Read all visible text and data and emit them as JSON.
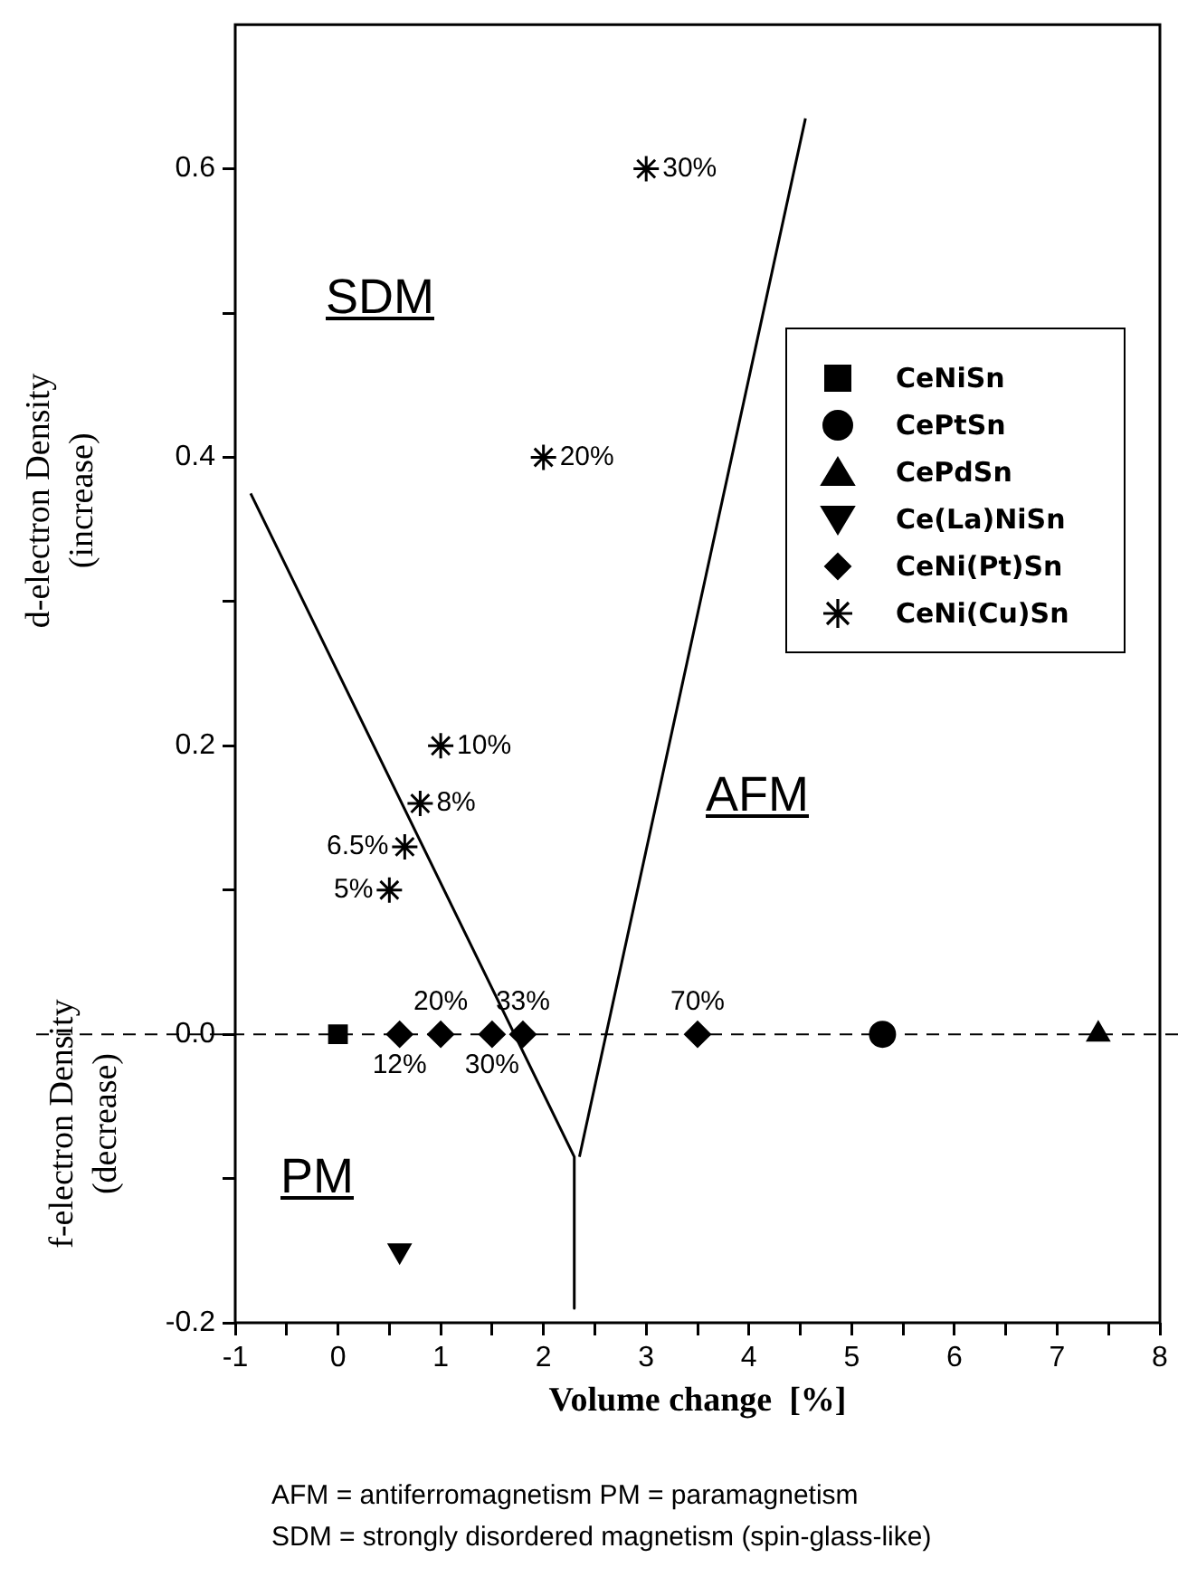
{
  "chart_data": {
    "type": "scatter",
    "xlabel": "Volume change  [%]",
    "ylabel": "d-electron Density\n(increase)",
    "xlim": [
      -1,
      8
    ],
    "ylim": [
      -0.2,
      0.7
    ],
    "xticks": [
      -1,
      {
        "value": -0.5,
        "label": null
      },
      0,
      {
        "value": 0.5,
        "label": null
      },
      1,
      {
        "value": 1.5,
        "label": null
      },
      2,
      {
        "value": 2.5,
        "label": null
      },
      3,
      {
        "value": 3.5,
        "label": null
      },
      4,
      {
        "value": 4.5,
        "label": null
      },
      5,
      {
        "value": 5.5,
        "label": null
      },
      6,
      {
        "value": 6.5,
        "label": null
      },
      7,
      {
        "value": 7.5,
        "label": null
      },
      8
    ],
    "yticks": [
      -0.2,
      {
        "value": -0.1,
        "label": null
      },
      {
        "value": 0,
        "label": "0.0"
      },
      {
        "value": 0.1,
        "label": null
      },
      0.2,
      {
        "value": 0.3,
        "label": null
      },
      0.4,
      {
        "value": 0.5,
        "label": null
      },
      0.6
    ],
    "legend": "right",
    "grid": false,
    "series": [
      {
        "name": "CeNiSn",
        "color": "#000000",
        "marker": "square",
        "x": [
          0
        ],
        "values": [
          0
        ]
      },
      {
        "name": "CePtSn",
        "color": "#000000",
        "marker": "circle",
        "x": [
          5.3
        ],
        "values": [
          0
        ]
      },
      {
        "name": "CePdSn",
        "color": "#000000",
        "marker": "triangle",
        "x": [
          7.4
        ],
        "values": [
          0
        ]
      },
      {
        "name": "Ce(La)NiSn",
        "color": "#000000",
        "marker": "triangle_down",
        "x": [
          0.6
        ],
        "values": [
          -0.15
        ]
      },
      {
        "name": "CeNi(Pt)Sn",
        "color": "#000000",
        "marker": "diamond",
        "x": [
          0.6,
          1.0,
          1.5,
          1.8,
          3.5
        ],
        "values": [
          0,
          0,
          0,
          0,
          0
        ]
      },
      {
        "name": "CeNi(Cu)Sn",
        "color": "#000000",
        "marker": "cross",
        "x": [
          0.5,
          0.65,
          0.8,
          1.0,
          2.0,
          3.0
        ],
        "values": [
          0.1,
          0.13,
          0.16,
          0.2,
          0.4,
          0.6
        ]
      },
      {
        "type": "line",
        "color": "#000000",
        "marker": "none",
        "x": [
          -0.85,
          2.3,
          2.3
        ],
        "values": [
          0.375,
          -0.085,
          -0.19
        ]
      },
      {
        "type": "line",
        "color": "#000000",
        "marker": "none",
        "x": [
          2.35,
          4.55
        ],
        "values": [
          -0.085,
          0.635
        ]
      }
    ],
    "ref_lines": [
      {
        "axis": "y",
        "value": 0,
        "line_style": "dashed"
      }
    ],
    "annotations": [
      "SDM",
      "AFM",
      "PM",
      "f-electron Density\n(decrease)",
      {
        "text": "12%",
        "x": 0.6,
        "y": 0
      },
      {
        "text": "20%",
        "x": 1.0,
        "y": 0
      },
      {
        "text": "30%",
        "x": 1.5,
        "y": 0
      },
      {
        "text": "33%",
        "x": 1.8,
        "y": 0
      },
      {
        "text": "70%",
        "x": 3.5,
        "y": 0
      },
      {
        "text": "5%",
        "x": 0.5,
        "y": 0.1
      },
      {
        "text": "6.5%",
        "x": 0.65,
        "y": 0.13
      },
      {
        "text": "8%",
        "x": 0.8,
        "y": 0.16
      },
      {
        "text": "10%",
        "x": 1.0,
        "y": 0.2
      },
      {
        "text": "20%",
        "x": 2.0,
        "y": 0.4
      },
      {
        "text": "30%",
        "x": 3.0,
        "y": 0.6
      },
      "AFM = antiferromagnetism   PM = paramagnetism",
      "SDM = strongly disordered magnetism (spin-glass-like)"
    ]
  }
}
